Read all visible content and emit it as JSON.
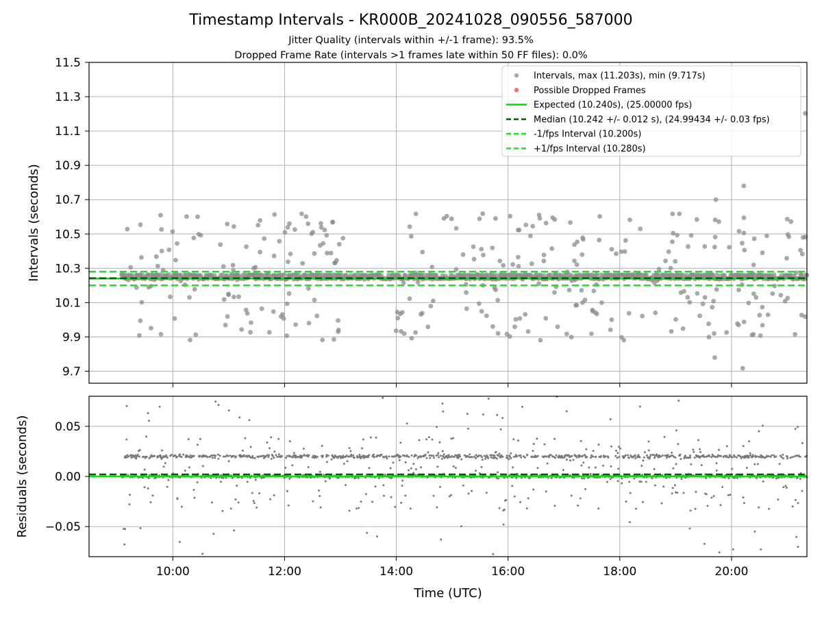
{
  "chart_data": [
    {
      "type": "scatter",
      "title": "Timestamp Intervals - KR000B_20241028_090556_587000",
      "subtitle_1": "Jitter Quality (intervals within +/-1 frame): 93.5%",
      "subtitle_2": "Dropped Frame Rate (intervals >1 frames late within 50 FF files): 0.0%",
      "ylabel": "Intervals (seconds)",
      "ylim": [
        9.63,
        11.5
      ],
      "xlim_hours": [
        8.5,
        21.35
      ],
      "yticks": [
        "11.5",
        "11.3",
        "11.1",
        "10.9",
        "10.7",
        "10.5",
        "10.3",
        "10.1",
        "9.9",
        "9.7"
      ],
      "grid": true,
      "legend_position": "top-right",
      "series": [
        {
          "name": "Intervals, max (11.203s), min (9.717s)",
          "kind": "scatter",
          "color": "#8c8c8c",
          "max": 11.203,
          "min": 9.717,
          "x_start_hours": 9.08,
          "x_end_hours": 21.35,
          "typical_value": 10.24,
          "spread": [
            9.88,
            10.62
          ]
        },
        {
          "name": "Possible Dropped Frames",
          "kind": "scatter",
          "color": "#f06464",
          "values": []
        },
        {
          "name": "Expected (10.240s), (25.00000 fps)",
          "kind": "hline",
          "value": 10.24,
          "color": "#00e600",
          "style": "solid"
        },
        {
          "name": "Median (10.242 +/- 0.012 s), (24.99434 +/- 0.03 fps)",
          "kind": "hline",
          "value": 10.242,
          "color": "#006400",
          "style": "dashed"
        },
        {
          "name": "-1/fps Interval (10.200s)",
          "kind": "hline",
          "value": 10.2,
          "color": "#1ee61e",
          "style": "dashed"
        },
        {
          "name": "+1/fps Interval (10.280s)",
          "kind": "hline",
          "value": 10.28,
          "color": "#1ee61e",
          "style": "dashed"
        }
      ]
    },
    {
      "type": "scatter",
      "ylabel": "Residuals (seconds)",
      "xlabel": "Time (UTC)",
      "ylim": [
        -0.08,
        0.08
      ],
      "xlim_hours": [
        8.5,
        21.35
      ],
      "yticks": [
        "0.05",
        "0.00",
        "−0.05"
      ],
      "ytick_values": [
        0.05,
        0.0,
        -0.05
      ],
      "xticks": [
        "10:00",
        "12:00",
        "14:00",
        "16:00",
        "18:00",
        "20:00"
      ],
      "xtick_values": [
        10,
        12,
        14,
        16,
        18,
        20
      ],
      "grid": true,
      "series": [
        {
          "name": "Residuals",
          "kind": "scatter",
          "color": "#7a7a7a",
          "bands": [
            0.0,
            0.02
          ],
          "range": [
            -0.08,
            0.08
          ]
        },
        {
          "name": "Expected",
          "kind": "hline",
          "value": 0.0,
          "color": "#00e600",
          "style": "solid"
        },
        {
          "name": "Median",
          "kind": "hline",
          "value": 0.002,
          "color": "#006400",
          "style": "dashed"
        }
      ]
    }
  ]
}
